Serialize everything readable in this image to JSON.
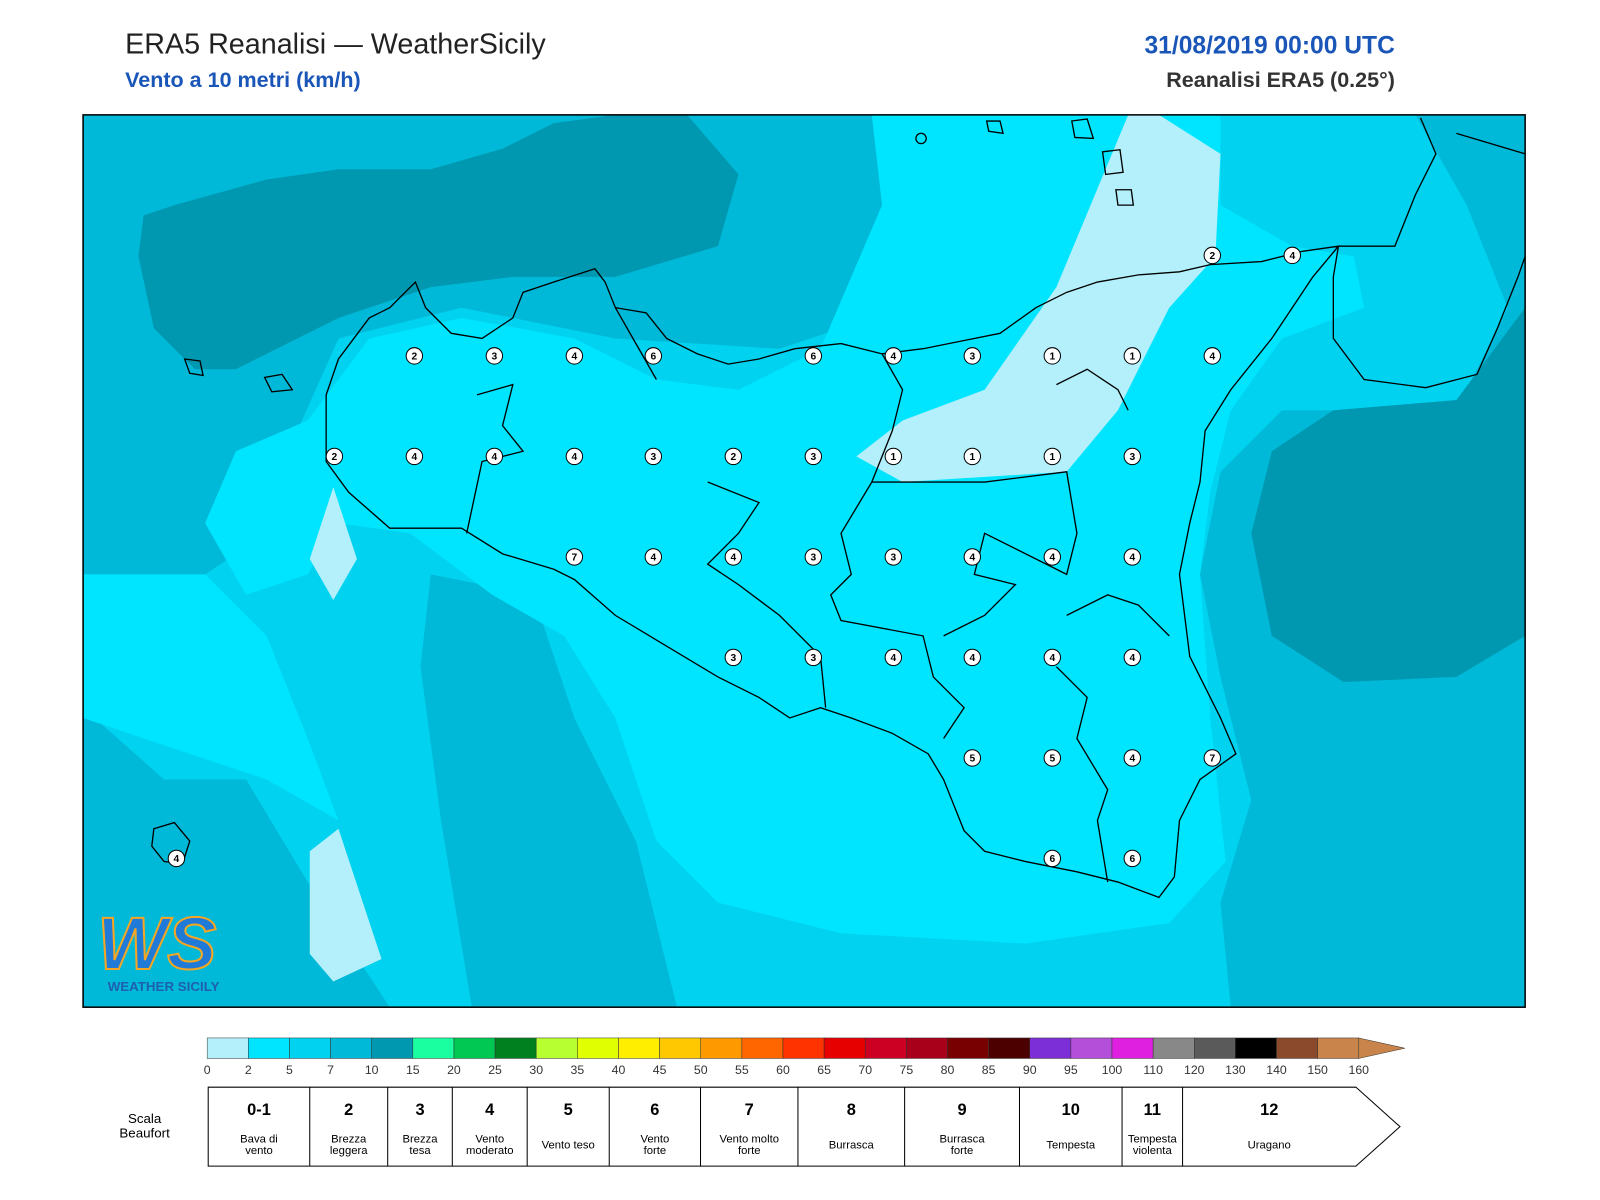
{
  "header": {
    "title": "ERA5 Reanalisi — WeatherSicily",
    "subtitle": "Vento a 10 metri (km/h)",
    "datetime": "31/08/2019 00:00 UTC",
    "source": "Reanalisi ERA5 (0.25°)"
  },
  "wind_values": [
    2,
    4,
    2,
    3,
    4,
    6,
    6,
    4,
    3,
    1,
    1,
    4,
    2,
    4,
    4,
    4,
    3,
    2,
    3,
    1,
    1,
    1,
    3,
    7,
    4,
    4,
    3,
    3,
    4,
    4,
    4,
    3,
    3,
    4,
    4,
    4,
    4,
    5,
    5,
    4,
    7,
    6,
    6,
    4
  ],
  "colorbar": {
    "ticks": [
      0,
      2,
      5,
      7,
      10,
      15,
      20,
      25,
      30,
      35,
      40,
      45,
      50,
      55,
      60,
      65,
      70,
      75,
      80,
      85,
      90,
      95,
      100,
      110,
      120,
      130,
      140,
      150,
      160
    ],
    "colors": [
      "#b3f0fb",
      "#00e5ff",
      "#00d2f0",
      "#00b9d8",
      "#0098b0",
      "#1affa0",
      "#00c853",
      "#00801e",
      "#b8ff32",
      "#e0ff00",
      "#ffee00",
      "#ffc800",
      "#ff9900",
      "#ff6600",
      "#ff3300",
      "#e60000",
      "#cc0022",
      "#a8001a",
      "#780000",
      "#4d0000",
      "#7c2fd6",
      "#b44fd9",
      "#e020e0",
      "#888888",
      "#5a5a5a",
      "#000000",
      "#8b4a2b",
      "#c8844a"
    ]
  },
  "beaufort": {
    "label": [
      "Scala",
      "Beaufort"
    ],
    "levels": [
      {
        "force": "0-1",
        "description": [
          "Bava di",
          "vento"
        ]
      },
      {
        "force": "2",
        "description": [
          "Brezza",
          "leggera"
        ]
      },
      {
        "force": "3",
        "description": [
          "Brezza",
          "tesa"
        ]
      },
      {
        "force": "4",
        "description": [
          "Vento",
          "moderato"
        ]
      },
      {
        "force": "5",
        "description": [
          "Vento teso"
        ]
      },
      {
        "force": "6",
        "description": [
          "Vento",
          "forte"
        ]
      },
      {
        "force": "7",
        "description": [
          "Vento molto",
          "forte"
        ]
      },
      {
        "force": "8",
        "description": [
          "Burrasca"
        ]
      },
      {
        "force": "9",
        "description": [
          "Burrasca",
          "forte"
        ]
      },
      {
        "force": "10",
        "description": [
          "Tempesta"
        ]
      },
      {
        "force": "11",
        "description": [
          "Tempesta",
          "violenta"
        ]
      },
      {
        "force": "12",
        "description": [
          "Uragano"
        ]
      }
    ]
  },
  "logo": {
    "mark": "WS",
    "text": "WEATHER SICILY"
  }
}
